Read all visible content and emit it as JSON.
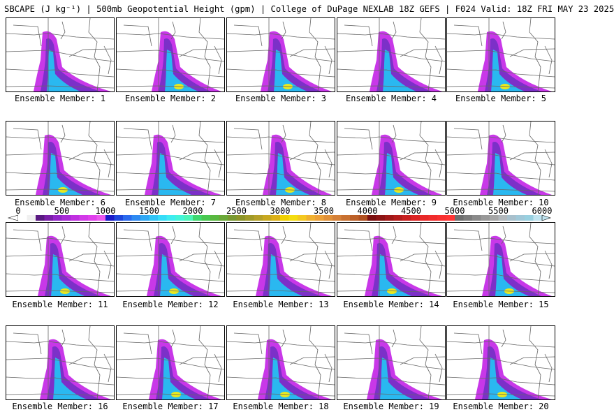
{
  "header": {
    "title": "SBCAPE (J kg⁻¹) | 500mb Geopotential Height (gpm) | College of DuPage NEXLAB 18Z GEFS | F024 Valid: 18Z FRI MAY 23 2025"
  },
  "panels": [
    {
      "label": "Ensemble Member: 1"
    },
    {
      "label": "Ensemble Member: 2"
    },
    {
      "label": "Ensemble Member: 3"
    },
    {
      "label": "Ensemble Member: 4"
    },
    {
      "label": "Ensemble Member: 5"
    },
    {
      "label": "Ensemble Member: 6"
    },
    {
      "label": "Ensemble Member: 7"
    },
    {
      "label": "Ensemble Member: 8"
    },
    {
      "label": "Ensemble Member: 9"
    },
    {
      "label": "Ensemble Member: 10"
    },
    {
      "label": "Ensemble Member: 11"
    },
    {
      "label": "Ensemble Member: 12"
    },
    {
      "label": "Ensemble Member: 13"
    },
    {
      "label": "Ensemble Member: 14"
    },
    {
      "label": "Ensemble Member: 15"
    },
    {
      "label": "Ensemble Member: 16"
    },
    {
      "label": "Ensemble Member: 17"
    },
    {
      "label": "Ensemble Member: 18"
    },
    {
      "label": "Ensemble Member: 19"
    },
    {
      "label": "Ensemble Member: 20"
    }
  ],
  "colorbar": {
    "ticks": [
      "0",
      "500",
      "1000",
      "1500",
      "2000",
      "2500",
      "3000",
      "3500",
      "4000",
      "4500",
      "5000",
      "5500",
      "6000"
    ],
    "min": 0,
    "max": 6000,
    "colors": [
      "#ffffff",
      "#f0f0f0",
      "#5a1a82",
      "#7a1fa8",
      "#9325c8",
      "#a82ad6",
      "#c030e0",
      "#d23ae8",
      "#e040ec",
      "#ea58ee",
      "#1a1ac8",
      "#1e46dc",
      "#2a6aee",
      "#2e8af2",
      "#30a8f4",
      "#32c4f6",
      "#36dcf8",
      "#3eecf0",
      "#44f4d8",
      "#4cf4b8",
      "#40d870",
      "#48c850",
      "#58b840",
      "#6aa838",
      "#789830",
      "#8c9428",
      "#a09a28",
      "#b4a028",
      "#c8a820",
      "#dcb018",
      "#f0d000",
      "#f4dc10",
      "#f4c820",
      "#f0b030",
      "#eca038",
      "#e09038",
      "#d48038",
      "#c87030",
      "#bc6028",
      "#b05020",
      "#7a1010",
      "#8c1414",
      "#a01818",
      "#b41c1c",
      "#c82020",
      "#dc2424",
      "#e82828",
      "#f02c2c",
      "#f83030",
      "#ff3434",
      "#6e6e6e",
      "#7c7c7c",
      "#8a8a8a",
      "#989898",
      "#a6a6a6",
      "#b2b8bc",
      "#a8c0cc",
      "#a0c8d8",
      "#98d0e0",
      "#c0e4f0"
    ]
  },
  "colors": {
    "plume_light": "#c838e8",
    "plume_mid": "#7c30c8",
    "plume_core": "#2ab8f0",
    "plume_hot": "#e8e820",
    "map_lines": "#666666"
  }
}
